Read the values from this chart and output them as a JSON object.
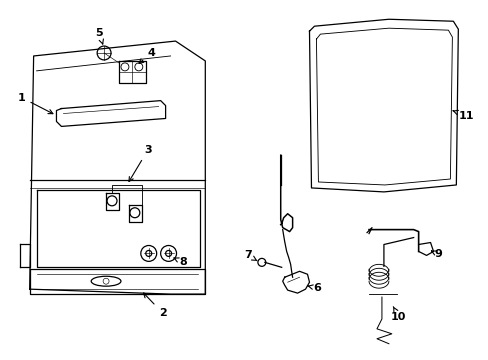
{
  "background_color": "#ffffff",
  "line_color": "#000000",
  "lw": 0.9
}
